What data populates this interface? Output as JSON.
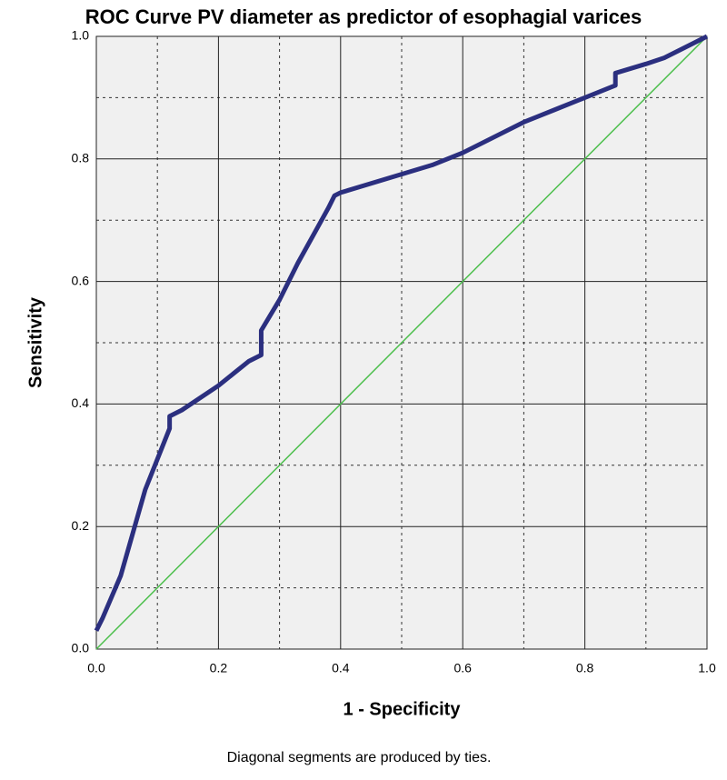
{
  "chart_data": {
    "type": "line",
    "title": "ROC Curve PV diameter as predictor of esophagial varices",
    "xlabel": "1 - Specificity",
    "ylabel": "Sensitivity",
    "footnote": "Diagonal segments are produced by ties.",
    "x": [
      0,
      0.01,
      0.04,
      0.06,
      0.08,
      0.12,
      0.12,
      0.14,
      0.2,
      0.25,
      0.27,
      0.27,
      0.3,
      0.33,
      0.38,
      0.39,
      0.4,
      0.5,
      0.55,
      0.6,
      0.7,
      0.75,
      0.8,
      0.85,
      0.85,
      0.9,
      0.93,
      1
    ],
    "series": [
      {
        "color": "#2b2f7f",
        "values": [
          0.03,
          0.05,
          0.12,
          0.19,
          0.26,
          0.36,
          0.38,
          0.39,
          0.43,
          0.47,
          0.48,
          0.52,
          0.57,
          0.63,
          0.72,
          0.74,
          0.745,
          0.775,
          0.79,
          0.81,
          0.86,
          0.88,
          0.9,
          0.92,
          0.94,
          0.955,
          0.965,
          1
        ]
      }
    ],
    "reference_line": {
      "x": [
        0,
        1
      ],
      "values": [
        0,
        1
      ],
      "color": "#4cbf4c"
    },
    "xlim": [
      0,
      1
    ],
    "ylim": [
      0,
      1
    ],
    "xticks": [
      {
        "value": 0,
        "label": "0.0"
      },
      0.2,
      0.4,
      0.6,
      0.8,
      {
        "value": 1,
        "label": "1.0"
      }
    ],
    "yticks": [
      {
        "value": 0,
        "label": "0.0"
      },
      0.2,
      0.4,
      0.6,
      0.8,
      {
        "value": 1,
        "label": "1.0"
      }
    ],
    "xminor": [
      0.1,
      0.3,
      0.5,
      0.7,
      0.9
    ],
    "yminor": [
      0.1,
      0.3,
      0.5,
      0.7,
      0.9
    ],
    "grid": true,
    "background": "#f0f0f0"
  }
}
